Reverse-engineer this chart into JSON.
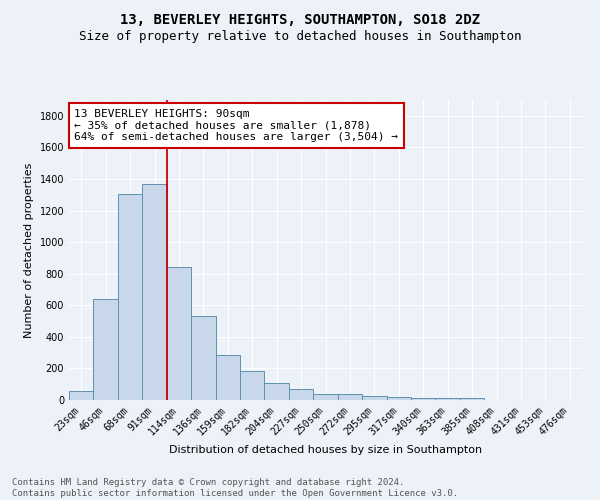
{
  "title": "13, BEVERLEY HEIGHTS, SOUTHAMPTON, SO18 2DZ",
  "subtitle": "Size of property relative to detached houses in Southampton",
  "xlabel": "Distribution of detached houses by size in Southampton",
  "ylabel": "Number of detached properties",
  "categories": [
    "23sqm",
    "46sqm",
    "68sqm",
    "91sqm",
    "114sqm",
    "136sqm",
    "159sqm",
    "182sqm",
    "204sqm",
    "227sqm",
    "250sqm",
    "272sqm",
    "295sqm",
    "317sqm",
    "340sqm",
    "363sqm",
    "385sqm",
    "408sqm",
    "431sqm",
    "453sqm",
    "476sqm"
  ],
  "values": [
    55,
    640,
    1305,
    1370,
    845,
    530,
    285,
    185,
    110,
    70,
    35,
    35,
    25,
    20,
    10,
    10,
    15,
    0,
    0,
    0,
    0
  ],
  "bar_color": "#c8d8ea",
  "bar_edge_color": "#6090b0",
  "annotation_box_text": "13 BEVERLEY HEIGHTS: 90sqm\n← 35% of detached houses are smaller (1,878)\n64% of semi-detached houses are larger (3,504) →",
  "vline_x": 3.5,
  "vline_color": "#cc0000",
  "ylim": [
    0,
    1900
  ],
  "yticks": [
    0,
    200,
    400,
    600,
    800,
    1000,
    1200,
    1400,
    1600,
    1800
  ],
  "footer_text": "Contains HM Land Registry data © Crown copyright and database right 2024.\nContains public sector information licensed under the Open Government Licence v3.0.",
  "bg_color": "#edf1f8",
  "plot_bg_color": "#edf1f8",
  "grid_color": "#ffffff",
  "title_fontsize": 10,
  "subtitle_fontsize": 9,
  "ylabel_fontsize": 8,
  "xlabel_fontsize": 8,
  "tick_fontsize": 7,
  "annotation_fontsize": 8,
  "footer_fontsize": 6.5
}
